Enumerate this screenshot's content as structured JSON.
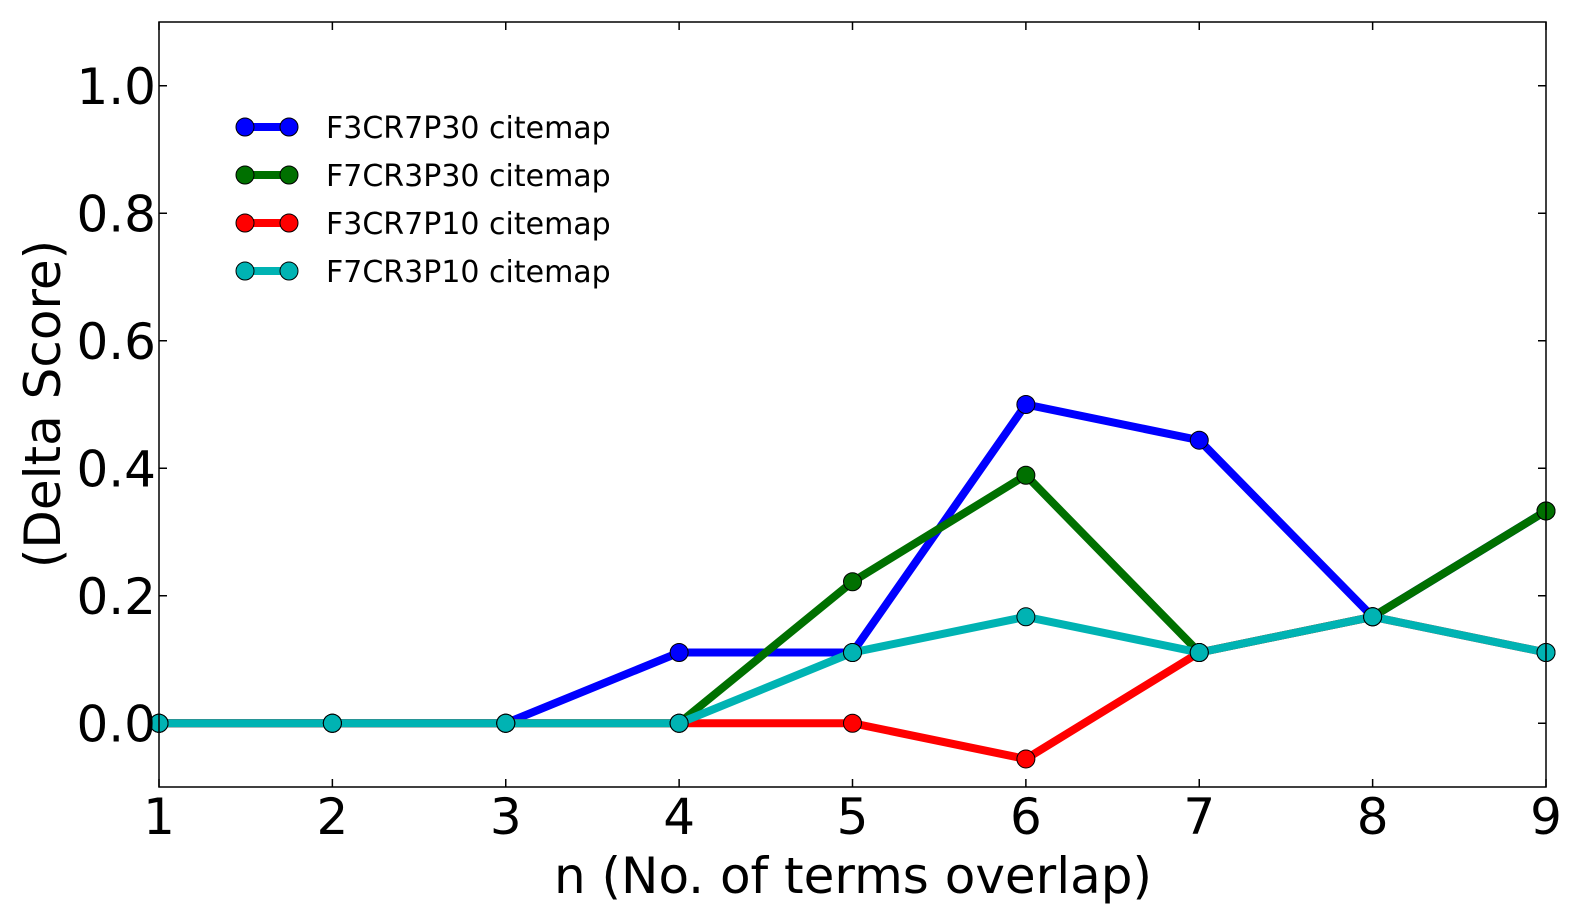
{
  "chart_data": {
    "type": "line",
    "title": "",
    "xlabel": "n (No. of terms overlap)",
    "ylabel": "(Delta Score)",
    "x": [
      1,
      2,
      3,
      4,
      5,
      6,
      7,
      8,
      9
    ],
    "xlim": [
      1,
      9
    ],
    "ylim": [
      -0.1,
      1.1
    ],
    "xticks": [
      "1",
      "2",
      "3",
      "4",
      "5",
      "6",
      "7",
      "8",
      "9"
    ],
    "yticks": [
      "0.0",
      "0.2",
      "0.4",
      "0.6",
      "0.8",
      "1.0"
    ],
    "grid": false,
    "legend_position": "upper-left",
    "series": [
      {
        "name": "F3CR7P30 citemap",
        "color": "#0000ff",
        "values": [
          0,
          0,
          0,
          0.111,
          0.111,
          0.5,
          0.444,
          0.167,
          0.333
        ]
      },
      {
        "name": "F7CR3P30 citemap",
        "color": "#007000",
        "values": [
          0,
          0,
          0,
          0,
          0.222,
          0.389,
          0.111,
          0.167,
          0.333
        ]
      },
      {
        "name": "F3CR7P10 citemap",
        "color": "#ff0000",
        "values": [
          0,
          0,
          0,
          0,
          0,
          -0.056,
          0.111,
          0.167,
          0.111
        ]
      },
      {
        "name": "F7CR3P10 citemap",
        "color": "#00b3b3",
        "values": [
          0,
          0,
          0,
          0,
          0.111,
          0.167,
          0.111,
          0.167,
          0.111
        ]
      }
    ]
  }
}
